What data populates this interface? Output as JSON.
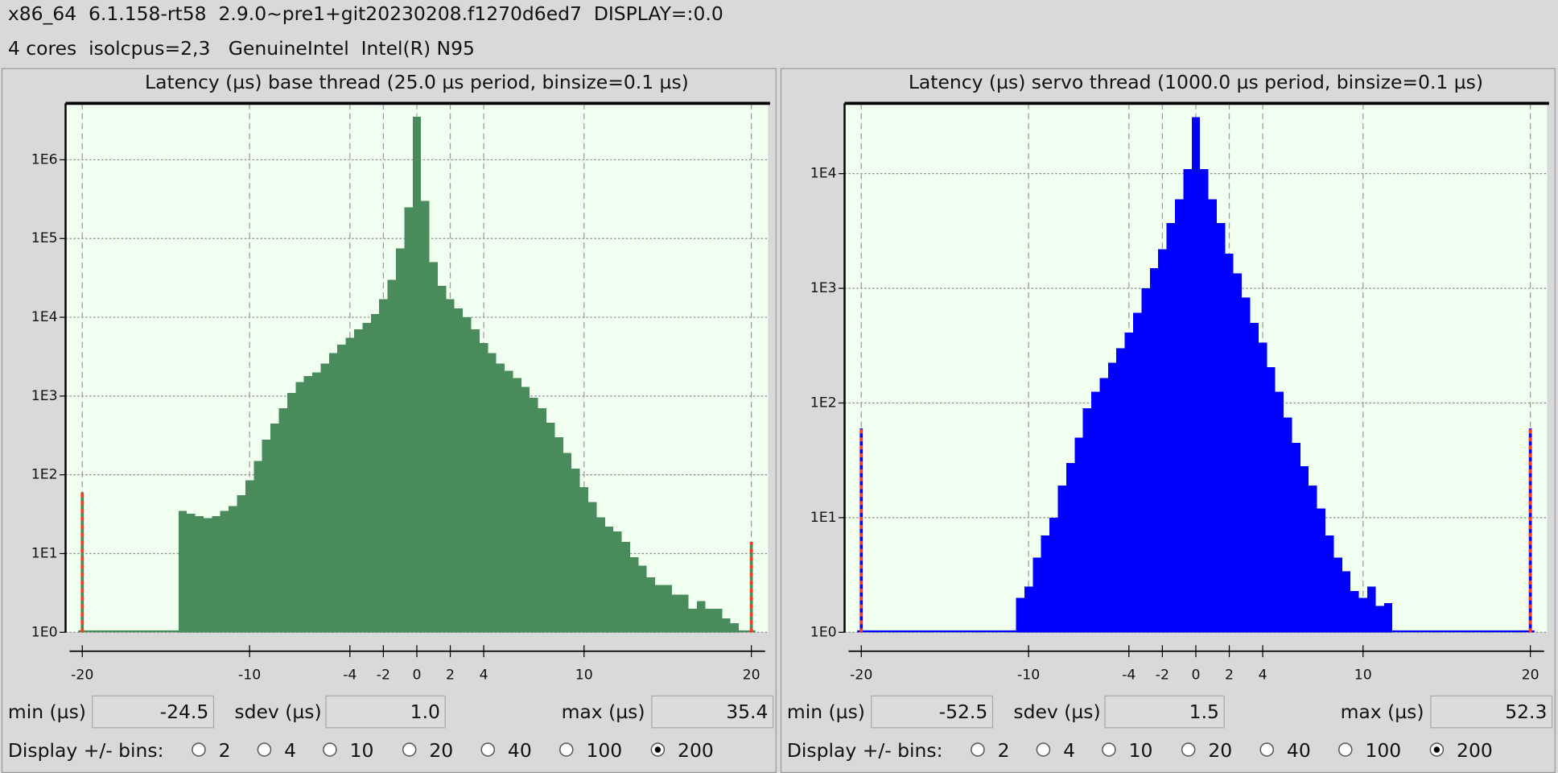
{
  "header": {
    "lines": [
      "x86_64  6.1.158-rt58  2.9.0~pre1+git20230208.f1270d6ed7  DISPLAY=:0.0",
      "4 cores  isolcpus=2,3   GenuineIntel  Intel(R) N95"
    ]
  },
  "chart_data": [
    {
      "type": "histogram",
      "title": "Latency (µs) base thread (25.0 µs period, binsize=0.1 µs)",
      "bins": [
        -20.25,
        -19.75,
        -19.25,
        -18.75,
        -18.25,
        -17.75,
        -17.25,
        -16.75,
        -16.25,
        -15.75,
        -15.25,
        -14.75,
        -14.25,
        -13.75,
        -13.25,
        -12.75,
        -12.25,
        -11.75,
        -11.25,
        -10.75,
        -10.25,
        -9.75,
        -9.25,
        -8.75,
        -8.25,
        -7.75,
        -7.25,
        -6.75,
        -6.25,
        -5.75,
        -5.25,
        -4.75,
        -4.25,
        -3.75,
        -3.25,
        -2.75,
        -2.25,
        -1.75,
        -1.25,
        -0.75,
        -0.25,
        0.25,
        0.75,
        1.25,
        1.75,
        2.25,
        2.75,
        3.25,
        3.75,
        4.25,
        4.75,
        5.25,
        5.75,
        6.25,
        6.75,
        7.25,
        7.75,
        8.25,
        8.75,
        9.25,
        9.75,
        10.25,
        10.75,
        11.25,
        11.75,
        12.25,
        12.75,
        13.25,
        13.75,
        14.25,
        14.75,
        15.25,
        15.75,
        16.25,
        16.75,
        17.25,
        17.75,
        18.25,
        18.75,
        19.25,
        19.75,
        20.25
      ],
      "values": [
        0,
        1,
        0,
        0,
        0,
        0,
        0,
        0,
        0,
        0,
        0,
        0,
        35,
        32,
        30,
        28,
        30,
        35,
        40,
        55,
        85,
        150,
        280,
        450,
        700,
        1100,
        1500,
        1800,
        2000,
        2600,
        3500,
        4500,
        5500,
        7000,
        8500,
        11000,
        17000,
        30000,
        75000,
        250000,
        3500000,
        300000,
        50000,
        25000,
        17000,
        13000,
        10000,
        7000,
        4700,
        3500,
        2600,
        2100,
        1700,
        1300,
        950,
        700,
        460,
        300,
        190,
        120,
        70,
        45,
        29,
        22,
        19,
        14,
        9,
        7,
        5,
        4,
        4,
        3,
        3,
        2,
        2.5,
        2,
        2,
        1.5,
        1.3,
        1,
        0
      ],
      "color": "#4a8b5c",
      "overflow": {
        "x": [
          -20,
          20
        ],
        "values": [
          60,
          14
        ],
        "color": "#ff3b1f"
      },
      "background": "#f0fff0",
      "xlim": [
        -21,
        21
      ],
      "ylim": [
        1,
        5200000
      ],
      "log_y": true,
      "grid": true,
      "xticks": [
        -20,
        -10,
        -4,
        -2,
        0,
        2,
        4,
        10,
        20
      ],
      "yticks": [
        {
          "value": 1,
          "label": "1E0"
        },
        {
          "value": 10,
          "label": "1E1"
        },
        {
          "value": 100,
          "label": "1E2"
        },
        {
          "value": 1000,
          "label": "1E3"
        },
        {
          "value": 10000,
          "label": "1E4"
        },
        {
          "value": 100000,
          "label": "1E5"
        },
        {
          "value": 1000000,
          "label": "1E6"
        }
      ]
    },
    {
      "type": "histogram",
      "title": "Latency (µs) servo thread (1000.0 µs period, binsize=0.1 µs)",
      "bins": [
        -20.25,
        -19.75,
        -19.25,
        -18.75,
        -18.25,
        -17.75,
        -17.25,
        -16.75,
        -16.25,
        -15.75,
        -15.25,
        -14.75,
        -14.25,
        -13.75,
        -13.25,
        -12.75,
        -12.25,
        -11.75,
        -11.25,
        -10.75,
        -10.25,
        -9.75,
        -9.25,
        -8.75,
        -8.25,
        -7.75,
        -7.25,
        -6.75,
        -6.25,
        -5.75,
        -5.25,
        -4.75,
        -4.25,
        -3.75,
        -3.25,
        -2.75,
        -2.25,
        -1.75,
        -1.25,
        -0.75,
        -0.25,
        0.25,
        0.75,
        1.25,
        1.75,
        2.25,
        2.75,
        3.25,
        3.75,
        4.25,
        4.75,
        5.25,
        5.75,
        6.25,
        6.75,
        7.25,
        7.75,
        8.25,
        8.75,
        9.25,
        9.75,
        10.25,
        10.75,
        11.25,
        11.75,
        12.25,
        12.75,
        13.25,
        13.75,
        14.25,
        14.75,
        15.25,
        15.75,
        16.25,
        16.75,
        17.25,
        17.75,
        18.25,
        18.75,
        19.25,
        19.75,
        20.25
      ],
      "values": [
        0,
        0,
        0,
        1,
        0,
        0,
        0,
        0,
        0,
        0,
        0,
        0,
        0,
        0,
        0,
        0,
        1,
        0,
        0,
        2,
        2.5,
        4.5,
        7,
        10,
        19,
        30,
        50,
        90,
        125,
        165,
        225,
        300,
        410,
        610,
        1000,
        1500,
        2200,
        3700,
        6000,
        11000,
        31000,
        11000,
        6000,
        3700,
        2000,
        1350,
        830,
        500,
        335,
        205,
        125,
        75,
        45,
        28,
        19,
        12,
        7,
        4.5,
        3.4,
        2.3,
        2,
        2.5,
        1.7,
        1.8,
        1,
        1,
        0,
        0,
        0,
        0,
        0,
        0,
        0,
        0,
        0,
        0,
        0,
        0,
        0,
        0,
        0
      ],
      "color": "#0000ff",
      "overflow": {
        "x": [
          -20,
          20
        ],
        "values": [
          60,
          60
        ],
        "color": "#ff3b1f"
      },
      "background": "#f0fff0",
      "xlim": [
        -21,
        21
      ],
      "ylim": [
        1,
        41000
      ],
      "log_y": true,
      "grid": true,
      "xticks": [
        -20,
        -10,
        -4,
        -2,
        0,
        2,
        4,
        10,
        20
      ],
      "yticks": [
        {
          "value": 1,
          "label": "1E0"
        },
        {
          "value": 10,
          "label": "1E1"
        },
        {
          "value": 100,
          "label": "1E2"
        },
        {
          "value": 1000,
          "label": "1E3"
        },
        {
          "value": 10000,
          "label": "1E4"
        }
      ]
    }
  ],
  "controls": [
    {
      "stats": [
        {
          "label": "min (µs)",
          "value": "-24.5"
        },
        {
          "label": "sdev (µs)",
          "value": "1.0"
        },
        {
          "label": "max (µs)",
          "value": "35.4"
        }
      ],
      "bins_label": "Display +/- bins:",
      "bin_options": [
        2,
        4,
        10,
        20,
        40,
        100,
        200
      ],
      "selected": 200
    },
    {
      "stats": [
        {
          "label": "min (µs)",
          "value": "-52.5"
        },
        {
          "label": "sdev (µs)",
          "value": "1.5"
        },
        {
          "label": "max (µs)",
          "value": "52.3"
        }
      ],
      "bins_label": "Display +/- bins:",
      "bin_options": [
        2,
        4,
        10,
        20,
        40,
        100,
        200
      ],
      "selected": 200
    }
  ]
}
